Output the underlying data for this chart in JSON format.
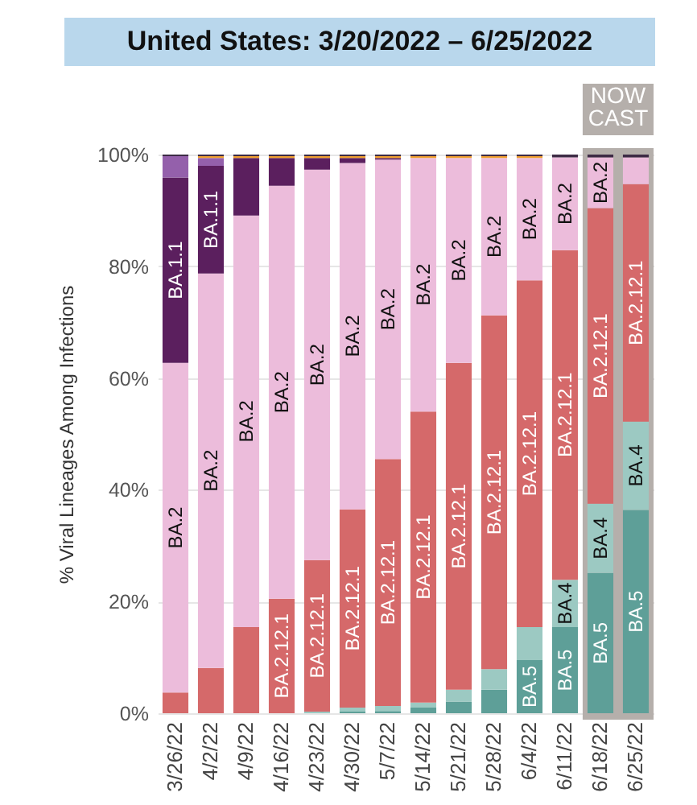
{
  "chart_data": {
    "type": "bar",
    "title": "United States: 3/20/2022 – 6/25/2022",
    "ylabel": "% Viral Lineages Among Infections",
    "categories": [
      "3/26/22",
      "4/2/22",
      "4/9/22",
      "4/16/22",
      "4/23/22",
      "4/30/22",
      "5/7/22",
      "5/14/22",
      "5/21/22",
      "5/28/22",
      "6/4/22",
      "6/11/22",
      "6/18/22",
      "6/25/22"
    ],
    "stacked": true,
    "ylim": [
      0,
      100
    ],
    "yticks": [
      {
        "value": 0,
        "label": "0%"
      },
      {
        "value": 20,
        "label": "20%"
      },
      {
        "value": 40,
        "label": "40%"
      },
      {
        "value": 60,
        "label": "60%"
      },
      {
        "value": 80,
        "label": "80%"
      },
      {
        "value": 100,
        "label": "100%"
      }
    ],
    "grid": "y",
    "legend": false,
    "bands": [
      {
        "axis": "x",
        "from": "6/18/22",
        "to": "6/25/22",
        "label": "NOW CAST",
        "color": "#b5afab"
      }
    ],
    "series": [
      {
        "name": "BA.5",
        "color": "#5e9f98",
        "values": [
          null,
          null,
          null,
          null,
          null,
          0.3,
          0.4,
          1.0,
          2.1,
          4.2,
          9.5,
          15.4,
          25.1,
          36.4
        ]
      },
      {
        "name": "BA.4",
        "color": "#9cc9c2",
        "values": [
          null,
          null,
          null,
          null,
          0.3,
          0.7,
          0.9,
          0.9,
          2.1,
          3.7,
          5.9,
          8.5,
          12.4,
          15.8
        ]
      },
      {
        "name": "BA.2.12.1",
        "color": "#d5696a",
        "values": [
          3.7,
          8.1,
          15.4,
          20.5,
          27.1,
          35.5,
          44.2,
          52.1,
          58.5,
          63.3,
          62.1,
          59.0,
          52.9,
          42.5
        ]
      },
      {
        "name": "BA.2",
        "color": "#ecbcdb",
        "values": [
          59.0,
          70.6,
          73.7,
          73.9,
          69.9,
          62.0,
          53.6,
          45.4,
          36.7,
          28.2,
          21.9,
          16.6,
          9.1,
          4.8
        ]
      },
      {
        "name": "BA.1.1",
        "color": "#5b1f5e",
        "values": [
          33.2,
          19.3,
          10.3,
          5.0,
          2.1,
          0.9,
          0.3,
          null,
          null,
          null,
          null,
          null,
          null,
          null
        ]
      },
      {
        "color": "#9460ab",
        "values": [
          3.8,
          1.4,
          null,
          null,
          null,
          null,
          null,
          null,
          null,
          null,
          null,
          null,
          null,
          null
        ]
      },
      {
        "color": "#f0a030",
        "values": [
          null,
          0.3,
          0.3,
          0.3,
          0.3,
          0.3,
          0.3,
          0.3,
          0.3,
          0.3,
          0.3,
          null,
          null,
          null
        ]
      },
      {
        "color": "#3d2b45",
        "values": [
          0.3,
          0.3,
          0.3,
          0.3,
          0.3,
          0.3,
          0.3,
          0.3,
          0.3,
          0.3,
          0.3,
          0.5,
          0.5,
          0.5
        ]
      }
    ]
  }
}
